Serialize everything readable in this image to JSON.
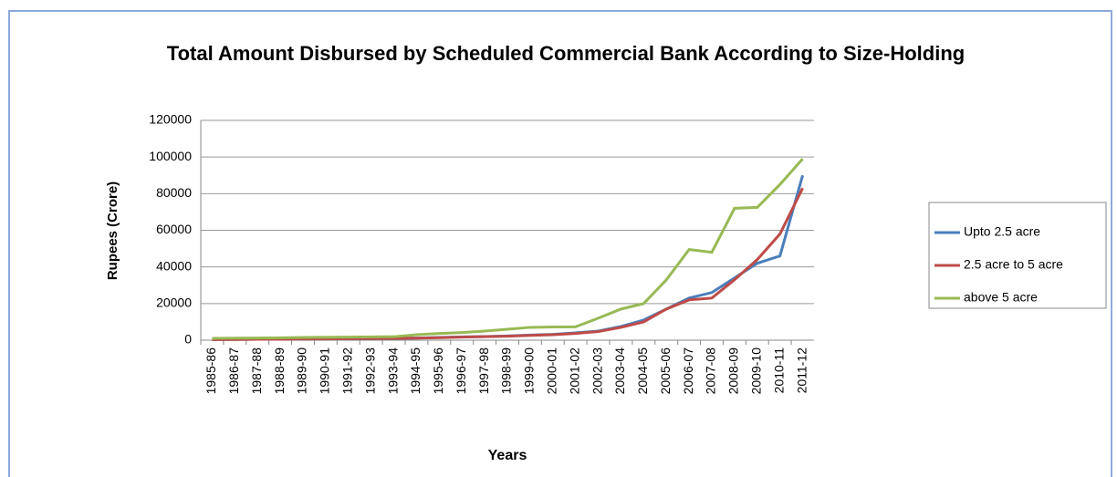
{
  "chart_data": {
    "type": "line",
    "title": "Total Amount Disbursed by Scheduled Commercial Bank According to Size-Holding",
    "x_label": "Years",
    "y_label": "Rupees (Crore)",
    "categories": [
      "1985-86",
      "1986-87",
      "1987-88",
      "1988-89",
      "1989-90",
      "1990-91",
      "1991-92",
      "1992-93",
      "1993-94",
      "1994-95",
      "1995-96",
      "1996-97",
      "1997-98",
      "1998-99",
      "1999-00",
      "2000-01",
      "2001-02",
      "2002-03",
      "2003-04",
      "2004-05",
      "2005-06",
      "2006-07",
      "2007-08",
      "2008-09",
      "2009-10",
      "2010-11",
      "2011-12"
    ],
    "series": [
      {
        "name": "Upto 2.5 acre",
        "color": "#4a7ebb",
        "values": [
          300,
          400,
          500,
          500,
          600,
          700,
          800,
          900,
          1000,
          1200,
          1500,
          1800,
          2000,
          2300,
          2800,
          3200,
          4000,
          5000,
          7500,
          11000,
          17000,
          23000,
          26000,
          34000,
          42000,
          46000,
          90000
        ]
      },
      {
        "name": "2.5 acre to 5 acre",
        "color": "#be4b48",
        "values": [
          300,
          400,
          500,
          500,
          600,
          700,
          800,
          900,
          1000,
          1100,
          1400,
          1700,
          1900,
          2200,
          2600,
          3000,
          3700,
          4700,
          7000,
          10000,
          17000,
          22000,
          23000,
          33000,
          44000,
          58000,
          83000
        ]
      },
      {
        "name": "above 5 acre",
        "color": "#98b954",
        "values": [
          1000,
          1100,
          1200,
          1300,
          1500,
          1600,
          1700,
          1800,
          1900,
          3000,
          3700,
          4200,
          5000,
          6000,
          7000,
          7200,
          7300,
          12000,
          17000,
          20000,
          33000,
          49500,
          48000,
          72000,
          72500,
          85000,
          99000
        ]
      }
    ],
    "ylim": [
      0,
      120000
    ],
    "yticks": [
      0,
      20000,
      40000,
      60000,
      80000,
      100000,
      120000
    ],
    "grid": true,
    "legend": "right"
  }
}
